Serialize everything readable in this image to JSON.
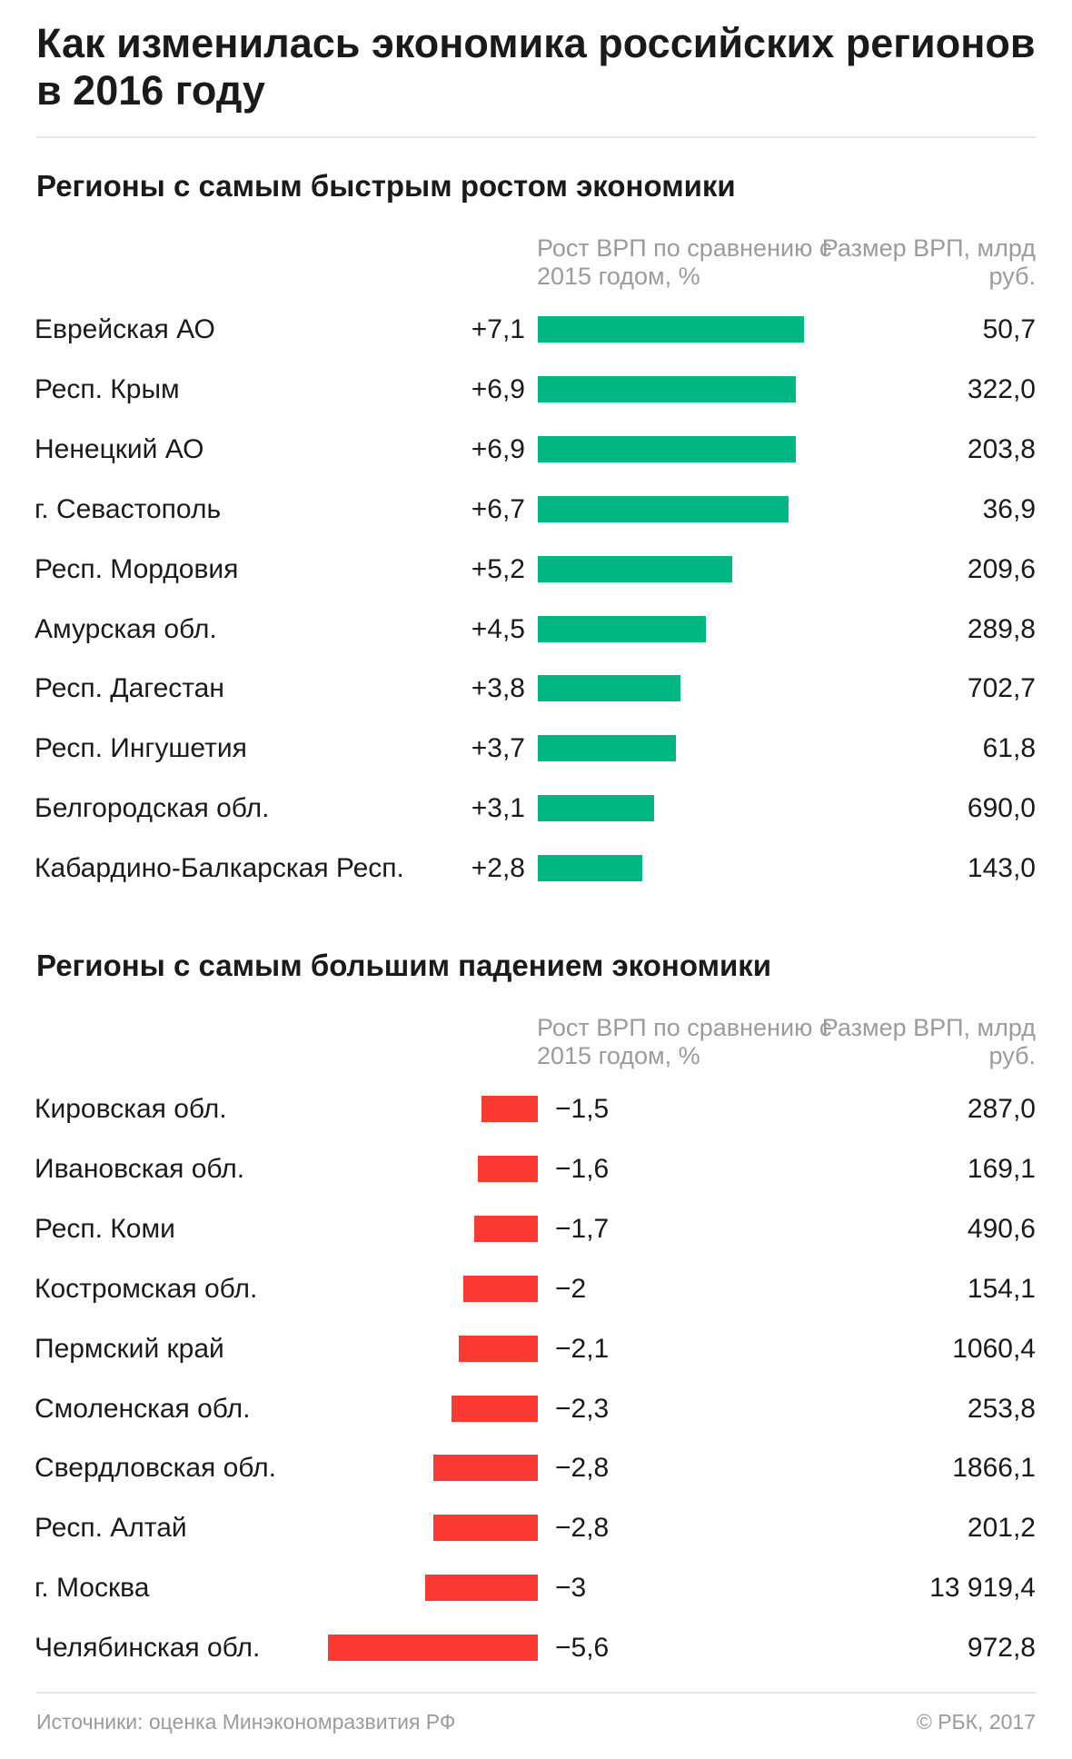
{
  "title": "Как изменилась экономика российских регионов в 2016 году",
  "colors": {
    "growth_bar": "#00b783",
    "decline_bar": "#fb3b33",
    "muted_text": "#9b9b9b"
  },
  "chart_data": [
    {
      "type": "bar",
      "title": "Регионы с самым быстрым ростом экономики",
      "columns": {
        "growth": "Рост ВРП по сравнению с 2015 годом, %",
        "size": "Размер ВРП, млрд руб."
      },
      "orientation": "horizontal",
      "categories": [
        "Еврейская АО",
        "Респ. Крым",
        "Ненецкий АО",
        "г. Севастополь",
        "Респ. Мордовия",
        "Амурская обл.",
        "Респ. Дагестан",
        "Респ. Ингушетия",
        "Белгородская обл.",
        "Кабардино-Балкарская Респ."
      ],
      "values": [
        7.1,
        6.9,
        6.9,
        6.7,
        5.2,
        4.5,
        3.8,
        3.7,
        3.1,
        2.8
      ],
      "value_labels": [
        "+7,1",
        "+6,9",
        "+6,9",
        "+6,7",
        "+5,2",
        "+4,5",
        "+3,8",
        "+3,7",
        "+3,1",
        "+2,8"
      ],
      "gdp": [
        "50,7",
        "322,0",
        "203,8",
        "36,9",
        "209,6",
        "289,8",
        "702,7",
        "61,8",
        "690,0",
        "143,0"
      ]
    },
    {
      "type": "bar",
      "title": "Регионы с самым большим падением экономики",
      "columns": {
        "growth": "Рост ВРП по сравнению с 2015 годом, %",
        "size": "Размер ВРП, млрд руб."
      },
      "orientation": "horizontal",
      "categories": [
        "Кировская обл.",
        "Ивановская обл.",
        "Респ. Коми",
        "Костромская обл.",
        "Пермский край",
        "Смоленская обл.",
        "Свердловская обл.",
        "Респ. Алтай",
        "г. Москва",
        "Челябинская обл."
      ],
      "values": [
        -1.5,
        -1.6,
        -1.7,
        -2,
        -2.1,
        -2.3,
        -2.8,
        -2.8,
        -3,
        -5.6
      ],
      "value_labels": [
        "−1,5",
        "−1,6",
        "−1,7",
        "−2",
        "−2,1",
        "−2,3",
        "−2,8",
        "−2,8",
        "−3",
        "−5,6"
      ],
      "gdp": [
        "287,0",
        "169,1",
        "490,6",
        "154,1",
        "1060,4",
        "253,8",
        "1866,1",
        "201,2",
        "13 919,4",
        "972,8"
      ]
    }
  ],
  "footer": {
    "source": "Источники: оценка Минэкономразвития РФ",
    "credit": "© РБК, 2017"
  }
}
